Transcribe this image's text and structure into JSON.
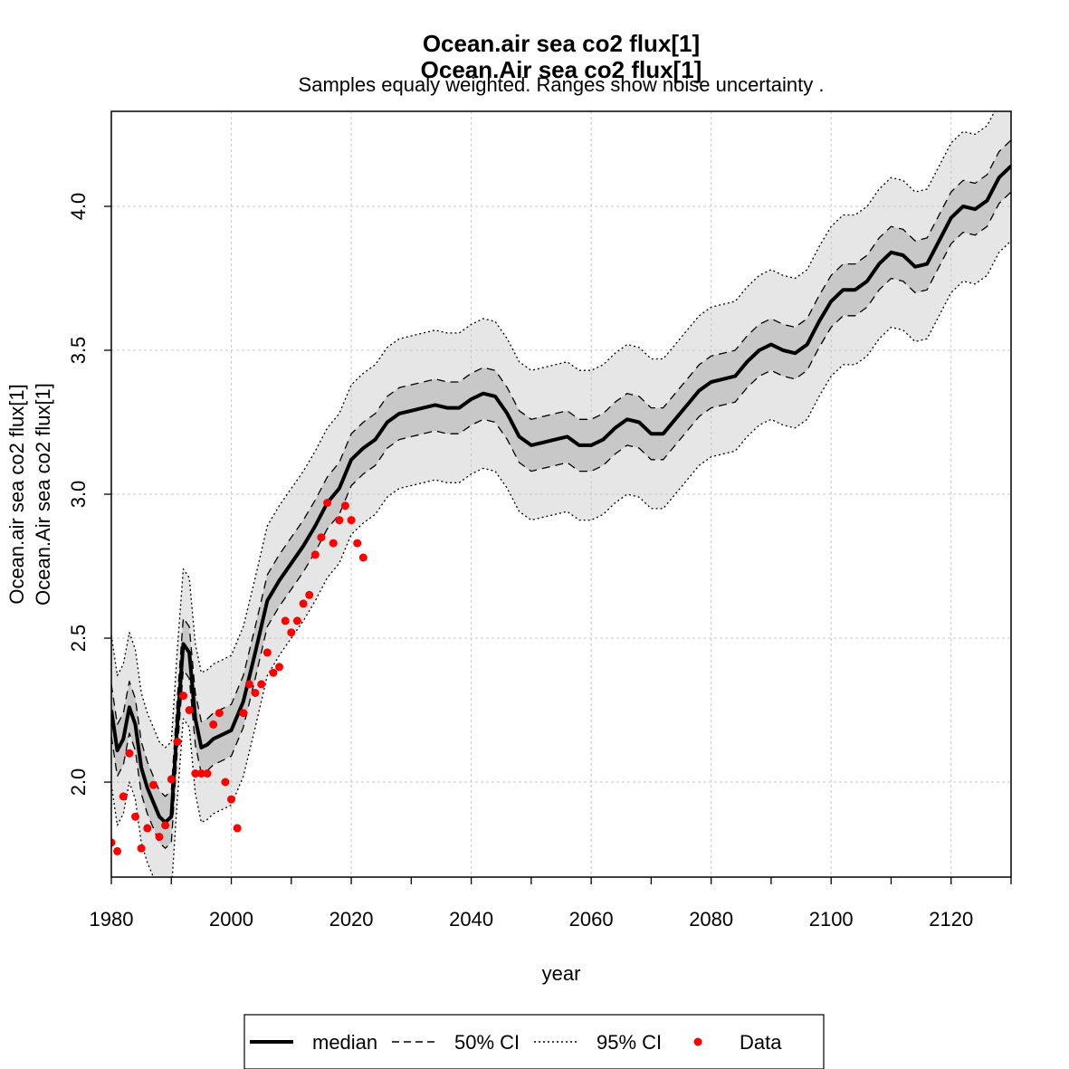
{
  "chart_data": {
    "type": "line",
    "title": "Ocean.air sea co2 flux[1]",
    "title2": "Ocean.Air sea co2 flux[1]",
    "subtitle": "Samples equaly weighted. Ranges show  noise uncertainty .",
    "xlabel": "year",
    "ylabel": "Ocean.air sea co2 flux[1]",
    "ylabel2": "Ocean.Air sea co2 flux[1]",
    "xlim": [
      1980,
      2130
    ],
    "ylim": [
      1.67,
      4.33
    ],
    "x_ticks": [
      1980,
      2000,
      2020,
      2040,
      2060,
      2080,
      2100,
      2120
    ],
    "x_minor_ticks": [
      1990,
      2010,
      2030,
      2050,
      2070,
      2090,
      2110,
      2130
    ],
    "x_tick_labels": [
      "1980",
      "2000",
      "2020",
      "2040",
      "2060",
      "2080",
      "2100",
      "2120"
    ],
    "y_ticks": [
      2.0,
      2.5,
      3.0,
      3.5,
      4.0
    ],
    "y_tick_labels": [
      "2.0",
      "2.5",
      "3.0",
      "3.5",
      "4.0"
    ],
    "grid": true,
    "colors": {
      "median": "#000000",
      "ci50_fill": "#c8c8c8",
      "ci95_fill": "#e6e6e6",
      "data": "#ff0000",
      "grid": "#c8c8c8"
    },
    "series": [
      {
        "name": "median",
        "style": "solid",
        "x": [
          1980,
          1981,
          1982,
          1983,
          1984,
          1985,
          1986,
          1987,
          1988,
          1989,
          1990,
          1991,
          1992,
          1993,
          1994,
          1995,
          1996,
          1997,
          1998,
          2000,
          2002,
          2004,
          2006,
          2008,
          2010,
          2012,
          2014,
          2016,
          2018,
          2020,
          2022,
          2024,
          2026,
          2028,
          2030,
          2032,
          2034,
          2036,
          2038,
          2040,
          2042,
          2044,
          2046,
          2048,
          2050,
          2052,
          2054,
          2056,
          2058,
          2060,
          2062,
          2064,
          2066,
          2068,
          2070,
          2072,
          2074,
          2076,
          2078,
          2080,
          2082,
          2084,
          2086,
          2088,
          2090,
          2092,
          2094,
          2096,
          2098,
          2100,
          2102,
          2104,
          2106,
          2108,
          2110,
          2112,
          2114,
          2116,
          2118,
          2120,
          2122,
          2124,
          2126,
          2128,
          2130
        ],
        "values": [
          2.25,
          2.11,
          2.15,
          2.26,
          2.2,
          2.05,
          1.98,
          1.93,
          1.88,
          1.86,
          1.88,
          2.2,
          2.48,
          2.45,
          2.22,
          2.12,
          2.13,
          2.15,
          2.16,
          2.18,
          2.28,
          2.45,
          2.63,
          2.7,
          2.76,
          2.82,
          2.89,
          2.97,
          3.02,
          3.12,
          3.16,
          3.19,
          3.25,
          3.28,
          3.29,
          3.3,
          3.31,
          3.3,
          3.3,
          3.33,
          3.35,
          3.34,
          3.28,
          3.2,
          3.17,
          3.18,
          3.19,
          3.2,
          3.17,
          3.17,
          3.19,
          3.23,
          3.26,
          3.25,
          3.21,
          3.21,
          3.26,
          3.31,
          3.36,
          3.39,
          3.4,
          3.41,
          3.46,
          3.5,
          3.52,
          3.5,
          3.49,
          3.52,
          3.6,
          3.67,
          3.71,
          3.71,
          3.74,
          3.8,
          3.84,
          3.83,
          3.79,
          3.8,
          3.88,
          3.96,
          4.0,
          3.99,
          4.02,
          4.1,
          4.14
        ]
      },
      {
        "name": "50% CI",
        "style": "dashed",
        "x": [
          1980,
          1981,
          1982,
          1983,
          1984,
          1985,
          1986,
          1987,
          1988,
          1989,
          1990,
          1991,
          1992,
          1993,
          1994,
          1995,
          1996,
          1997,
          1998,
          2000,
          2002,
          2004,
          2006,
          2008,
          2010,
          2012,
          2014,
          2016,
          2018,
          2020,
          2022,
          2024,
          2026,
          2028,
          2030,
          2032,
          2034,
          2036,
          2038,
          2040,
          2042,
          2044,
          2046,
          2048,
          2050,
          2052,
          2054,
          2056,
          2058,
          2060,
          2062,
          2064,
          2066,
          2068,
          2070,
          2072,
          2074,
          2076,
          2078,
          2080,
          2082,
          2084,
          2086,
          2088,
          2090,
          2092,
          2094,
          2096,
          2098,
          2100,
          2102,
          2104,
          2106,
          2108,
          2110,
          2112,
          2114,
          2116,
          2118,
          2120,
          2122,
          2124,
          2126,
          2128,
          2130
        ],
        "upper": [
          2.34,
          2.2,
          2.24,
          2.35,
          2.29,
          2.14,
          2.07,
          2.02,
          1.97,
          1.95,
          1.97,
          2.29,
          2.57,
          2.54,
          2.31,
          2.21,
          2.22,
          2.24,
          2.25,
          2.27,
          2.37,
          2.54,
          2.72,
          2.79,
          2.85,
          2.91,
          2.98,
          3.06,
          3.11,
          3.21,
          3.25,
          3.28,
          3.34,
          3.37,
          3.38,
          3.39,
          3.4,
          3.39,
          3.39,
          3.42,
          3.44,
          3.43,
          3.37,
          3.29,
          3.26,
          3.27,
          3.28,
          3.29,
          3.26,
          3.26,
          3.28,
          3.32,
          3.35,
          3.34,
          3.3,
          3.3,
          3.35,
          3.4,
          3.45,
          3.48,
          3.49,
          3.5,
          3.55,
          3.59,
          3.61,
          3.59,
          3.58,
          3.61,
          3.69,
          3.76,
          3.8,
          3.8,
          3.83,
          3.89,
          3.93,
          3.92,
          3.88,
          3.89,
          3.97,
          4.05,
          4.09,
          4.08,
          4.11,
          4.19,
          4.23
        ],
        "lower": [
          2.16,
          2.02,
          2.06,
          2.17,
          2.11,
          1.96,
          1.89,
          1.84,
          1.79,
          1.77,
          1.79,
          2.11,
          2.39,
          2.36,
          2.13,
          2.03,
          2.04,
          2.06,
          2.07,
          2.09,
          2.19,
          2.36,
          2.54,
          2.61,
          2.67,
          2.73,
          2.8,
          2.88,
          2.93,
          3.03,
          3.07,
          3.1,
          3.16,
          3.19,
          3.2,
          3.21,
          3.22,
          3.21,
          3.21,
          3.24,
          3.26,
          3.25,
          3.19,
          3.11,
          3.08,
          3.09,
          3.1,
          3.11,
          3.08,
          3.08,
          3.1,
          3.14,
          3.17,
          3.16,
          3.12,
          3.12,
          3.17,
          3.22,
          3.27,
          3.3,
          3.31,
          3.32,
          3.37,
          3.41,
          3.43,
          3.41,
          3.4,
          3.43,
          3.51,
          3.58,
          3.62,
          3.62,
          3.65,
          3.71,
          3.75,
          3.74,
          3.7,
          3.71,
          3.79,
          3.87,
          3.91,
          3.9,
          3.93,
          4.01,
          4.05
        ]
      },
      {
        "name": "95% CI",
        "style": "dotted",
        "x": [
          1980,
          1981,
          1982,
          1983,
          1984,
          1985,
          1986,
          1987,
          1988,
          1989,
          1990,
          1991,
          1992,
          1993,
          1994,
          1995,
          1996,
          1997,
          1998,
          2000,
          2002,
          2004,
          2006,
          2008,
          2010,
          2012,
          2014,
          2016,
          2018,
          2020,
          2022,
          2024,
          2026,
          2028,
          2030,
          2032,
          2034,
          2036,
          2038,
          2040,
          2042,
          2044,
          2046,
          2048,
          2050,
          2052,
          2054,
          2056,
          2058,
          2060,
          2062,
          2064,
          2066,
          2068,
          2070,
          2072,
          2074,
          2076,
          2078,
          2080,
          2082,
          2084,
          2086,
          2088,
          2090,
          2092,
          2094,
          2096,
          2098,
          2100,
          2102,
          2104,
          2106,
          2108,
          2110,
          2112,
          2114,
          2116,
          2118,
          2120,
          2122,
          2124,
          2126,
          2128,
          2130
        ],
        "upper": [
          2.51,
          2.37,
          2.41,
          2.52,
          2.46,
          2.31,
          2.24,
          2.19,
          2.14,
          2.12,
          2.14,
          2.46,
          2.74,
          2.71,
          2.48,
          2.38,
          2.39,
          2.41,
          2.42,
          2.44,
          2.54,
          2.71,
          2.89,
          2.96,
          3.02,
          3.08,
          3.15,
          3.23,
          3.28,
          3.38,
          3.42,
          3.45,
          3.51,
          3.54,
          3.55,
          3.56,
          3.57,
          3.56,
          3.56,
          3.59,
          3.61,
          3.6,
          3.54,
          3.46,
          3.43,
          3.44,
          3.45,
          3.46,
          3.43,
          3.43,
          3.45,
          3.49,
          3.52,
          3.51,
          3.47,
          3.47,
          3.52,
          3.57,
          3.62,
          3.65,
          3.66,
          3.67,
          3.72,
          3.76,
          3.78,
          3.76,
          3.75,
          3.78,
          3.86,
          3.93,
          3.97,
          3.97,
          4.0,
          4.06,
          4.1,
          4.09,
          4.05,
          4.06,
          4.14,
          4.22,
          4.26,
          4.25,
          4.28,
          4.36,
          4.4
        ],
        "lower": [
          1.99,
          1.85,
          1.89,
          2.0,
          1.94,
          1.79,
          1.72,
          1.67,
          1.62,
          1.6,
          1.62,
          1.94,
          2.22,
          2.19,
          1.96,
          1.86,
          1.87,
          1.89,
          1.9,
          1.92,
          2.02,
          2.19,
          2.37,
          2.44,
          2.5,
          2.56,
          2.63,
          2.71,
          2.76,
          2.86,
          2.9,
          2.93,
          2.99,
          3.02,
          3.03,
          3.04,
          3.05,
          3.04,
          3.04,
          3.07,
          3.09,
          3.08,
          3.02,
          2.94,
          2.91,
          2.92,
          2.93,
          2.94,
          2.91,
          2.91,
          2.93,
          2.97,
          3.0,
          2.99,
          2.95,
          2.95,
          3.0,
          3.05,
          3.1,
          3.13,
          3.14,
          3.15,
          3.2,
          3.24,
          3.26,
          3.24,
          3.23,
          3.26,
          3.34,
          3.41,
          3.45,
          3.45,
          3.48,
          3.54,
          3.58,
          3.57,
          3.53,
          3.54,
          3.62,
          3.7,
          3.74,
          3.73,
          3.76,
          3.84,
          3.88
        ]
      },
      {
        "name": "Data",
        "style": "points",
        "x": [
          1980,
          1981,
          1982,
          1983,
          1984,
          1985,
          1986,
          1987,
          1988,
          1989,
          1990,
          1991,
          1992,
          1993,
          1994,
          1995,
          1996,
          1997,
          1998,
          1999,
          2000,
          2001,
          2002,
          2003,
          2004,
          2005,
          2006,
          2007,
          2008,
          2009,
          2010,
          2011,
          2012,
          2013,
          2014,
          2015,
          2016,
          2017,
          2018,
          2019,
          2020,
          2021,
          2022
        ],
        "values": [
          1.79,
          1.76,
          1.95,
          2.1,
          1.88,
          1.77,
          1.84,
          1.99,
          1.81,
          1.85,
          2.01,
          2.14,
          2.3,
          2.25,
          2.03,
          2.03,
          2.03,
          2.2,
          2.24,
          2.0,
          1.94,
          1.84,
          2.24,
          2.34,
          2.31,
          2.34,
          2.45,
          2.38,
          2.4,
          2.56,
          2.52,
          2.56,
          2.62,
          2.65,
          2.79,
          2.85,
          2.97,
          2.83,
          2.91,
          2.96,
          2.91,
          2.83,
          2.78
        ]
      }
    ],
    "legend": {
      "placement": "bottom",
      "entries": [
        "median",
        "50% CI",
        "95% CI",
        "Data"
      ]
    }
  }
}
